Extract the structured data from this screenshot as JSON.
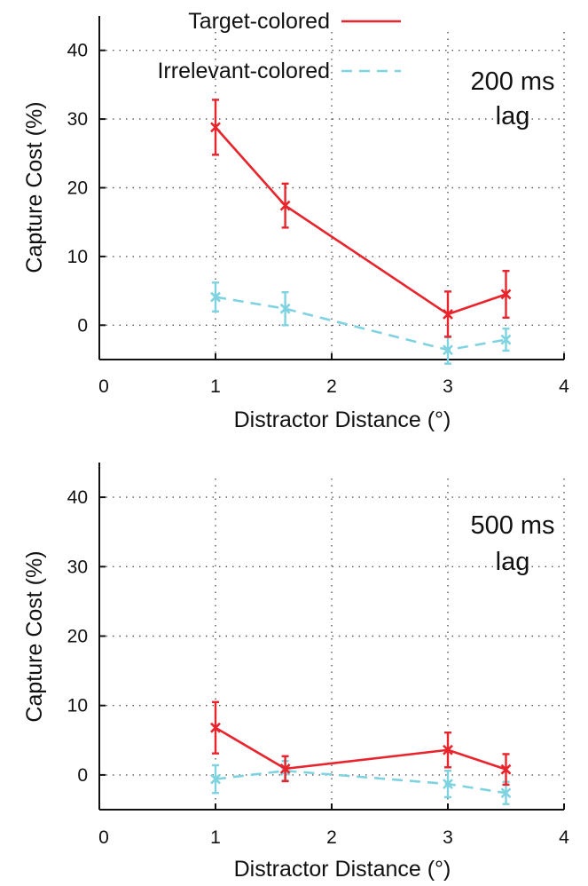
{
  "legend": {
    "entries": [
      {
        "label": "Target-colored",
        "color": "#e8242c",
        "dash": "solid"
      },
      {
        "label": "Irrelevant-colored",
        "color": "#7fd3e0",
        "dash": "dashed"
      }
    ]
  },
  "chart_data": [
    {
      "type": "line",
      "annotation": [
        "200 ms",
        "lag"
      ],
      "xlabel": "Distractor Distance (°)",
      "ylabel": "Capture Cost (%)",
      "xlim": [
        0,
        4
      ],
      "ylim": [
        -5,
        45
      ],
      "xticks": [
        0,
        1,
        2,
        3,
        4
      ],
      "yticks": [
        0,
        10,
        20,
        30,
        40
      ],
      "grid": true,
      "legend_position": "top-center",
      "series": [
        {
          "name": "Target-colored",
          "color": "#e8242c",
          "dash": "solid",
          "x": [
            1,
            1.6,
            3,
            3.5
          ],
          "y": [
            28.8,
            17.4,
            1.6,
            4.5
          ],
          "err": [
            4.0,
            3.2,
            3.3,
            3.4
          ]
        },
        {
          "name": "Irrelevant-colored",
          "color": "#7fd3e0",
          "dash": "dashed",
          "x": [
            1,
            1.6,
            3,
            3.5
          ],
          "y": [
            4.1,
            2.4,
            -3.6,
            -2.1
          ],
          "err": [
            2.1,
            2.4,
            2.0,
            1.6
          ]
        }
      ]
    },
    {
      "type": "line",
      "annotation": [
        "500 ms",
        "lag"
      ],
      "xlabel": "Distractor Distance (°)",
      "ylabel": "Capture Cost (%)",
      "xlim": [
        0,
        4
      ],
      "ylim": [
        -5,
        45
      ],
      "xticks": [
        0,
        1,
        2,
        3,
        4
      ],
      "yticks": [
        0,
        10,
        20,
        30,
        40
      ],
      "grid": true,
      "series": [
        {
          "name": "Target-colored",
          "color": "#e8242c",
          "dash": "solid",
          "x": [
            1,
            1.6,
            3,
            3.5
          ],
          "y": [
            6.8,
            0.9,
            3.6,
            0.8
          ],
          "err": [
            3.7,
            1.8,
            2.5,
            2.2
          ]
        },
        {
          "name": "Irrelevant-colored",
          "color": "#7fd3e0",
          "dash": "dashed",
          "x": [
            1,
            1.6,
            3,
            3.5
          ],
          "y": [
            -0.6,
            0.6,
            -1.3,
            -2.6
          ],
          "err": [
            2.0,
            1.4,
            1.9,
            1.6
          ]
        }
      ]
    }
  ]
}
